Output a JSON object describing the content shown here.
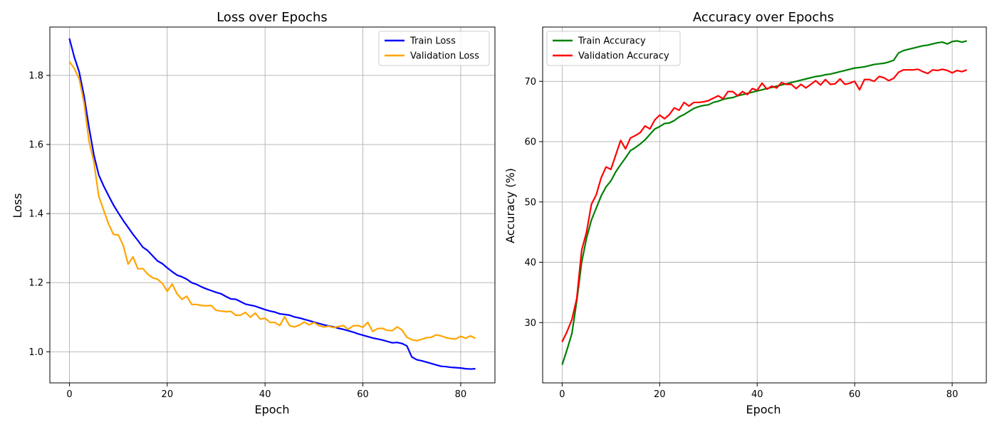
{
  "chart_data": [
    {
      "type": "line",
      "title": "Loss over Epochs",
      "xlabel": "Epoch",
      "ylabel": "Loss",
      "xlim": [
        -4,
        87
      ],
      "ylim": [
        0.91,
        1.94
      ],
      "xticks": [
        0,
        20,
        40,
        60,
        80
      ],
      "yticks": [
        1.0,
        1.2,
        1.4,
        1.6,
        1.8
      ],
      "grid": true,
      "legend_position": "upper right",
      "series": [
        {
          "name": "Train Loss",
          "color": "#0000ff",
          "values": [
            1.907,
            1.853,
            1.81,
            1.74,
            1.65,
            1.57,
            1.512,
            1.48,
            1.452,
            1.425,
            1.402,
            1.38,
            1.36,
            1.34,
            1.322,
            1.303,
            1.293,
            1.278,
            1.263,
            1.255,
            1.243,
            1.232,
            1.222,
            1.217,
            1.21,
            1.2,
            1.195,
            1.188,
            1.182,
            1.177,
            1.172,
            1.168,
            1.16,
            1.153,
            1.152,
            1.145,
            1.138,
            1.135,
            1.132,
            1.127,
            1.122,
            1.118,
            1.115,
            1.11,
            1.108,
            1.106,
            1.101,
            1.098,
            1.094,
            1.09,
            1.086,
            1.082,
            1.078,
            1.075,
            1.072,
            1.068,
            1.065,
            1.061,
            1.057,
            1.052,
            1.048,
            1.044,
            1.04,
            1.037,
            1.034,
            1.03,
            1.026,
            1.027,
            1.024,
            1.017,
            0.985,
            0.977,
            0.974,
            0.97,
            0.966,
            0.962,
            0.958,
            0.957,
            0.955,
            0.954,
            0.953,
            0.951,
            0.95,
            0.951
          ]
        },
        {
          "name": "Validation Loss",
          "color": "#ffa500",
          "values": [
            1.84,
            1.82,
            1.79,
            1.72,
            1.61,
            1.55,
            1.45,
            1.41,
            1.37,
            1.34,
            1.338,
            1.308,
            1.254,
            1.275,
            1.24,
            1.241,
            1.225,
            1.214,
            1.21,
            1.198,
            1.175,
            1.196,
            1.168,
            1.152,
            1.161,
            1.137,
            1.137,
            1.134,
            1.133,
            1.134,
            1.12,
            1.118,
            1.116,
            1.117,
            1.106,
            1.106,
            1.114,
            1.1,
            1.112,
            1.095,
            1.097,
            1.085,
            1.085,
            1.076,
            1.101,
            1.076,
            1.072,
            1.077,
            1.086,
            1.078,
            1.085,
            1.076,
            1.072,
            1.074,
            1.07,
            1.073,
            1.076,
            1.065,
            1.075,
            1.076,
            1.071,
            1.085,
            1.059,
            1.067,
            1.068,
            1.062,
            1.061,
            1.072,
            1.063,
            1.042,
            1.035,
            1.032,
            1.036,
            1.041,
            1.042,
            1.049,
            1.046,
            1.041,
            1.038,
            1.037,
            1.045,
            1.039,
            1.046,
            1.039
          ]
        }
      ]
    },
    {
      "type": "line",
      "title": "Accuracy over Epochs",
      "xlabel": "Epoch",
      "ylabel": "Accuracy (%)",
      "xlim": [
        -4,
        87
      ],
      "ylim": [
        20,
        79
      ],
      "xticks": [
        0,
        20,
        40,
        60,
        80
      ],
      "yticks": [
        30,
        40,
        50,
        60,
        70
      ],
      "grid": true,
      "legend_position": "upper left",
      "series": [
        {
          "name": "Train Accuracy",
          "color": "#008000",
          "values": [
            23.0,
            25.5,
            28.2,
            33.6,
            40.0,
            44.0,
            47.0,
            49.0,
            51.0,
            52.5,
            53.5,
            55.0,
            56.2,
            57.3,
            58.5,
            59.0,
            59.6,
            60.3,
            61.2,
            62.1,
            62.5,
            63.0,
            63.1,
            63.5,
            64.1,
            64.5,
            65.0,
            65.5,
            65.8,
            66.0,
            66.1,
            66.5,
            66.7,
            67.0,
            67.2,
            67.3,
            67.6,
            67.8,
            68.0,
            68.2,
            68.4,
            68.6,
            68.8,
            69.0,
            69.2,
            69.4,
            69.6,
            69.8,
            70.0,
            70.2,
            70.4,
            70.6,
            70.8,
            70.9,
            71.1,
            71.2,
            71.4,
            71.6,
            71.8,
            72.0,
            72.2,
            72.3,
            72.4,
            72.6,
            72.8,
            72.9,
            73.0,
            73.2,
            73.5,
            74.7,
            75.1,
            75.3,
            75.5,
            75.7,
            75.9,
            76.0,
            76.2,
            76.4,
            76.5,
            76.2,
            76.6,
            76.7,
            76.5,
            76.7
          ]
        },
        {
          "name": "Validation Accuracy",
          "color": "#ff0000",
          "values": [
            26.8,
            28.5,
            30.5,
            34.0,
            42.0,
            45.0,
            49.6,
            51.2,
            54.0,
            55.8,
            55.4,
            57.8,
            60.2,
            58.8,
            60.6,
            61.0,
            61.5,
            62.6,
            62.1,
            63.6,
            64.4,
            63.8,
            64.5,
            65.6,
            65.2,
            66.5,
            65.9,
            66.5,
            66.5,
            66.6,
            66.8,
            67.2,
            67.6,
            67.1,
            68.3,
            68.3,
            67.6,
            68.3,
            67.8,
            68.8,
            68.5,
            69.7,
            68.7,
            69.2,
            68.9,
            69.8,
            69.5,
            69.5,
            68.8,
            69.5,
            68.9,
            69.5,
            70.1,
            69.4,
            70.3,
            69.5,
            69.6,
            70.4,
            69.5,
            69.7,
            70.0,
            68.6,
            70.3,
            70.3,
            70.0,
            70.8,
            70.6,
            70.1,
            70.5,
            71.5,
            71.9,
            71.9,
            71.9,
            72.0,
            71.6,
            71.3,
            71.9,
            71.8,
            72.0,
            71.8,
            71.4,
            71.8,
            71.6,
            71.9
          ]
        }
      ]
    }
  ]
}
